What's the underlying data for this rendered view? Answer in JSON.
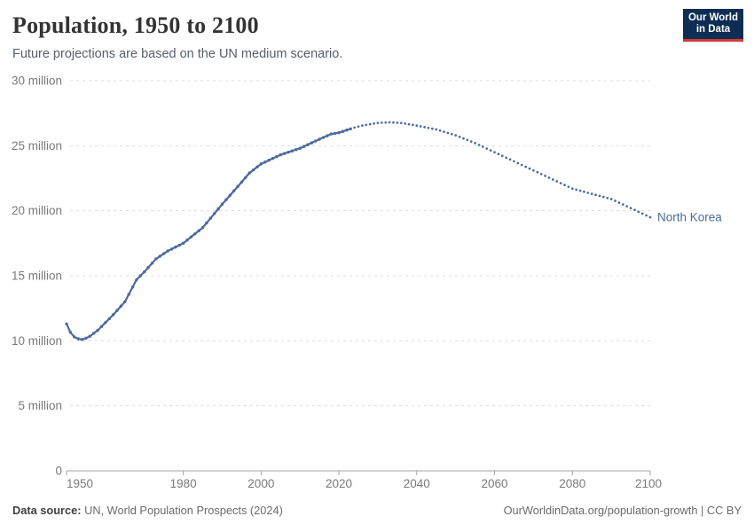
{
  "header": {
    "title": "Population, 1950 to 2100",
    "subtitle": "Future projections are based on the UN medium scenario."
  },
  "logo": {
    "line1": "Our World",
    "line2": "in Data",
    "bg_color": "#0d2e52",
    "accent_color": "#d23b33"
  },
  "footer": {
    "source_label": "Data source:",
    "source_value": " UN, World Population Prospects (2024)",
    "credit": "OurWorldinData.org/population-growth | CC BY"
  },
  "chart_data": {
    "type": "line",
    "title": "Population, 1950 to 2100",
    "entity_label": "North Korea",
    "unit": "million people",
    "xlim": [
      1950,
      2100
    ],
    "ylim": [
      0,
      30
    ],
    "x_ticks": [
      1950,
      1980,
      2000,
      2020,
      2040,
      2060,
      2080,
      2100
    ],
    "y_ticks": [
      {
        "value": 0,
        "label": "0"
      },
      {
        "value": 5,
        "label": "5 million"
      },
      {
        "value": 10,
        "label": "10 million"
      },
      {
        "value": 15,
        "label": "15 million"
      },
      {
        "value": 20,
        "label": "20 million"
      },
      {
        "value": 25,
        "label": "25 million"
      },
      {
        "value": 30,
        "label": "30 million"
      }
    ],
    "grid": true,
    "legend_position": "end-of-line-label",
    "line_color": "#4c6a9c",
    "axis_color": "#a3a3a3",
    "grid_color": "#dddddd",
    "tick_label_color": "#7a7a7a",
    "series": [
      {
        "name": "North Korea — estimates",
        "style": "solid-with-markers",
        "x": [
          1950,
          1951,
          1952,
          1953,
          1954,
          1955,
          1956,
          1958,
          1960,
          1962,
          1965,
          1968,
          1970,
          1973,
          1976,
          1980,
          1985,
          1990,
          1995,
          1997,
          2000,
          2005,
          2010,
          2015,
          2018,
          2020,
          2022,
          2023
        ],
        "y": [
          11.3,
          10.65,
          10.3,
          10.15,
          10.1,
          10.2,
          10.35,
          10.8,
          11.4,
          12.0,
          13.0,
          14.7,
          15.3,
          16.3,
          16.9,
          17.5,
          18.7,
          20.5,
          22.2,
          22.9,
          23.6,
          24.3,
          24.8,
          25.5,
          25.9,
          26.0,
          26.2,
          26.3
        ]
      },
      {
        "name": "North Korea — UN medium projection",
        "style": "dotted",
        "x": [
          2024,
          2026,
          2028,
          2030,
          2033,
          2036,
          2040,
          2045,
          2050,
          2055,
          2060,
          2065,
          2070,
          2075,
          2080,
          2085,
          2090,
          2095,
          2100
        ],
        "y": [
          26.4,
          26.55,
          26.65,
          26.75,
          26.8,
          26.75,
          26.55,
          26.25,
          25.8,
          25.2,
          24.5,
          23.8,
          23.1,
          22.4,
          21.7,
          21.3,
          20.9,
          20.2,
          19.5
        ]
      }
    ]
  }
}
